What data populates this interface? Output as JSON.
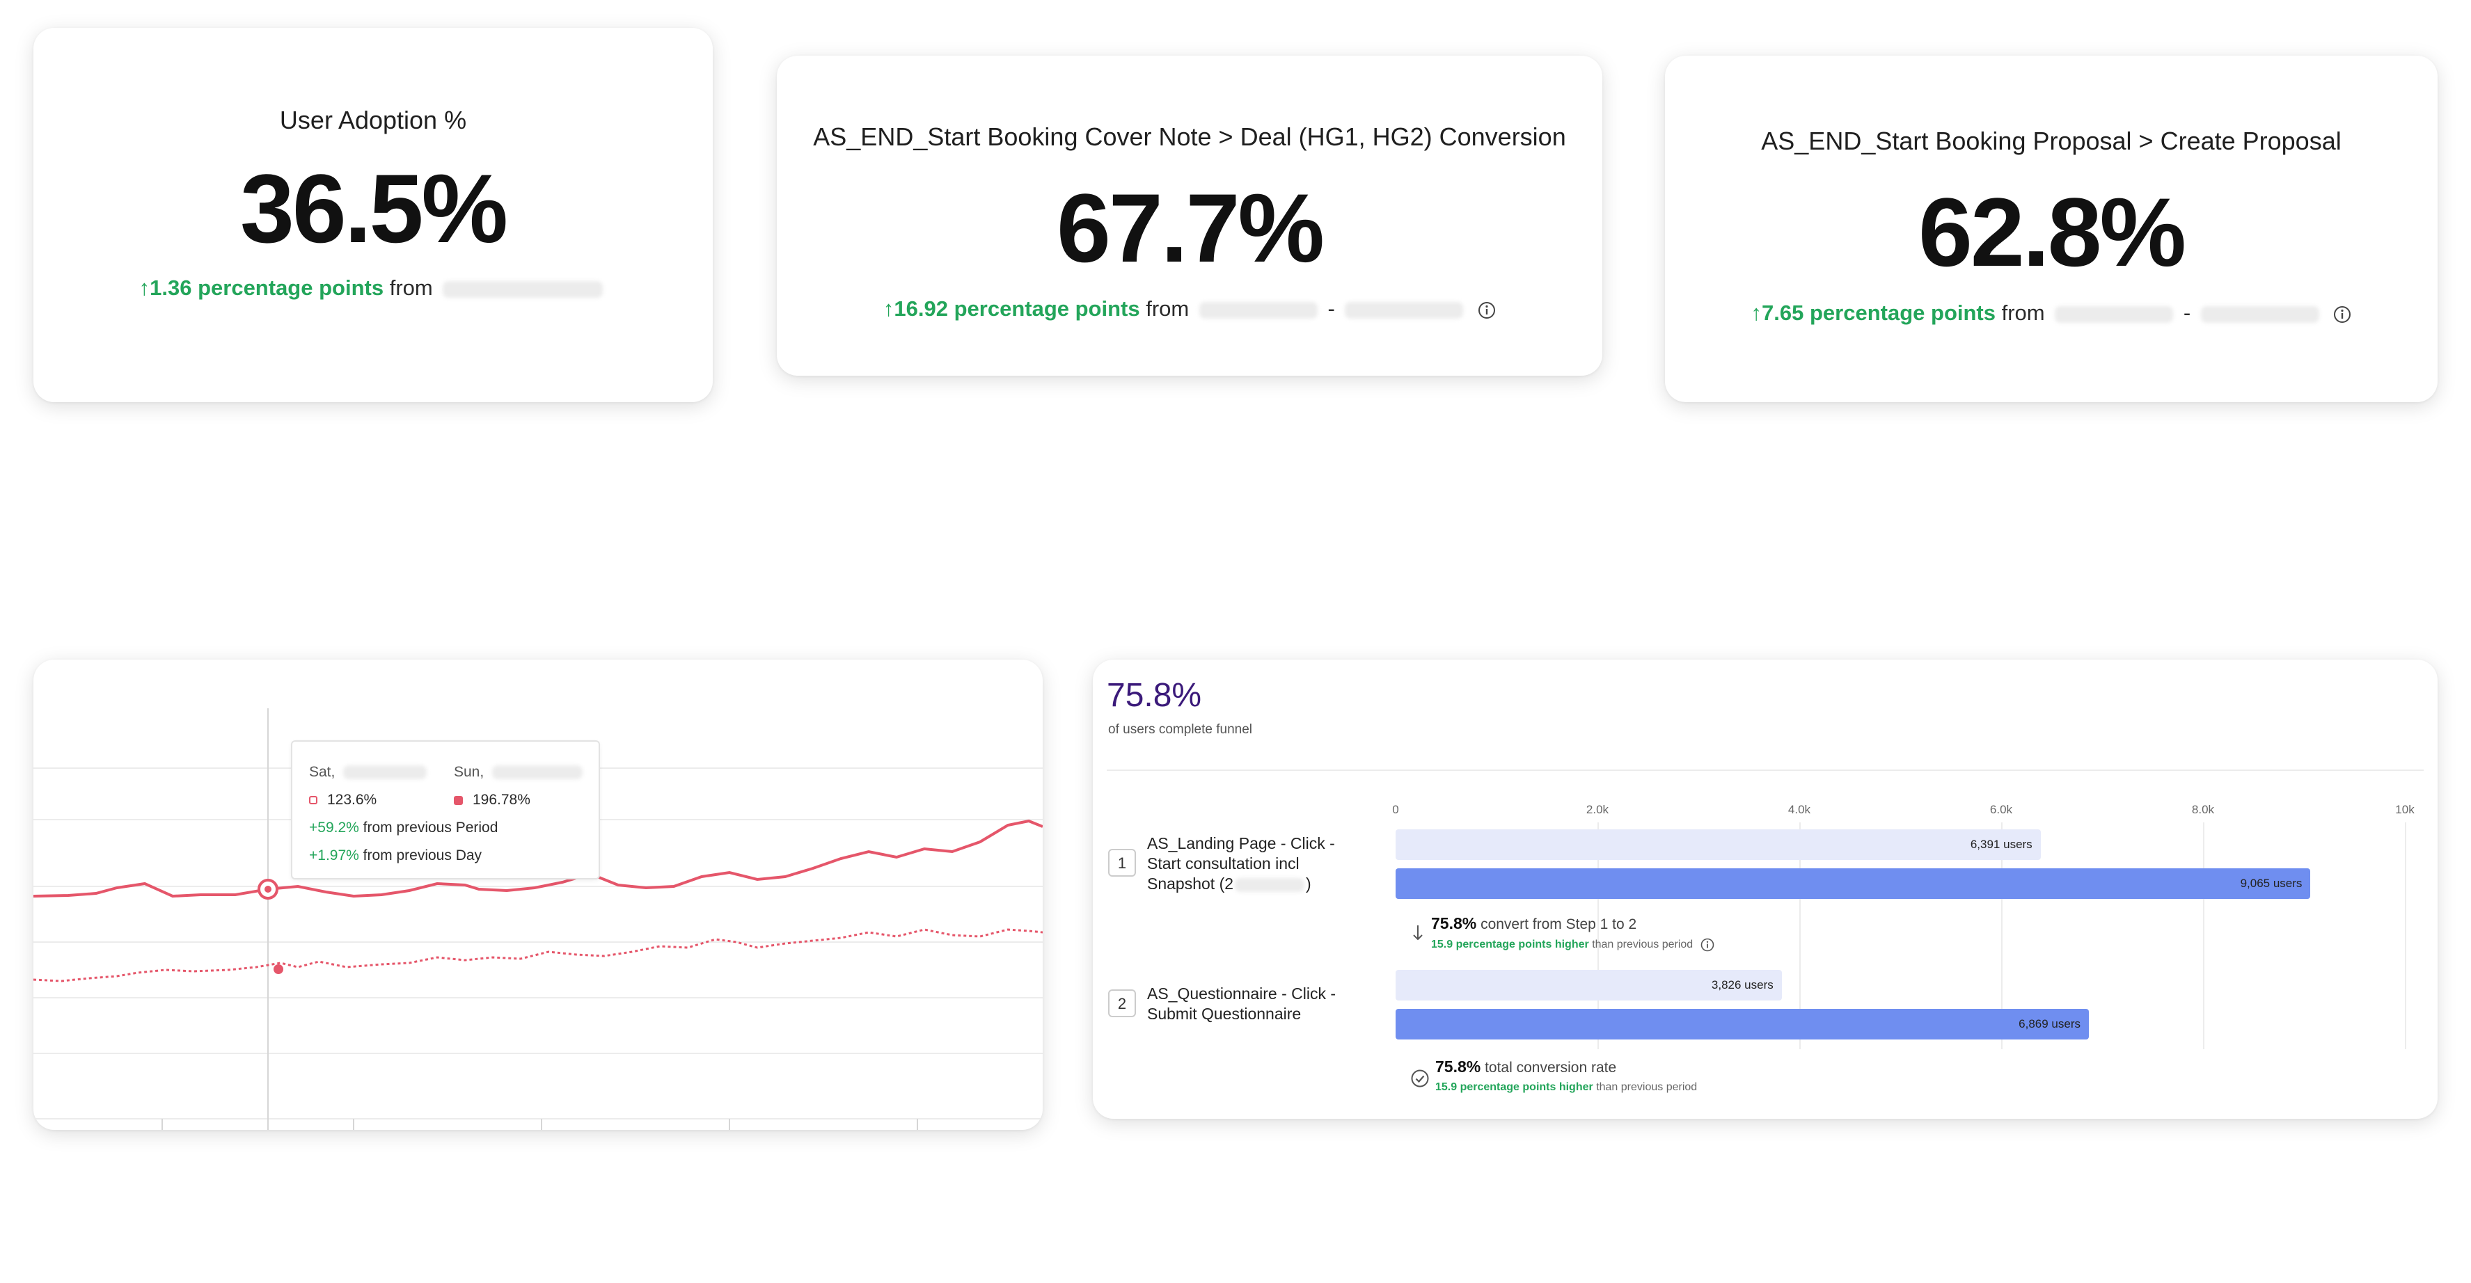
{
  "kpis": [
    {
      "title": "User Adoption %",
      "value": "36.5%",
      "delta": "↑1.36 percentage points",
      "from": "from"
    },
    {
      "title": "AS_END_Start Booking Cover Note > Deal (HG1, HG2) Conversion",
      "value": "67.7%",
      "delta": "↑16.92 percentage points",
      "from": "from",
      "sep": "-"
    },
    {
      "title": "AS_END_Start Booking Proposal > Create Proposal",
      "value": "62.8%",
      "delta": "↑7.65 percentage points",
      "from": "from",
      "sep": "-"
    }
  ],
  "linechart": {
    "tooltip": {
      "col1_label": "Sat,",
      "col2_label": "Sun,",
      "val1": "123.6%",
      "val2": "196.78%",
      "line3_value": "+59.2%",
      "line3_text": "from previous Period",
      "line4_value": "+1.97%",
      "line4_text": "from previous Day"
    },
    "colors": {
      "current": "#e5566a",
      "previous": "#e5566a"
    }
  },
  "funnel": {
    "headline": "75.8%",
    "subtitle": "of users complete funnel",
    "axis": [
      "0",
      "2.0k",
      "4.0k",
      "6.0k",
      "8.0k",
      "10k"
    ],
    "axis_max": 10000,
    "steps": [
      {
        "num": "1",
        "label_lines": [
          "AS_Landing Page - Click -",
          "Start consultation incl",
          "Snapshot (2"
        ],
        "label_tail": ")",
        "prev_users": 6391,
        "curr_users": 9065,
        "prev_label": "6,391 users",
        "curr_label": "9,065 users"
      },
      {
        "num": "2",
        "label_lines": [
          "AS_Questionnaire - Click -",
          "Submit Questionnaire"
        ],
        "prev_users": 3826,
        "curr_users": 6869,
        "prev_label": "3,826 users",
        "curr_label": "6,869 users"
      }
    ],
    "step_conversion": {
      "value": "75.8%",
      "text": "convert from Step 1 to 2",
      "delta": "15.9 percentage points higher",
      "delta_tail": "than previous period"
    },
    "total_conversion": {
      "value": "75.8%",
      "text": "total conversion rate",
      "delta": "15.9 percentage points higher",
      "delta_tail": "than previous period"
    },
    "colors": {
      "previous": "#e6eafa",
      "current": "#6f8ef0",
      "headline": "#3b1a7a"
    }
  }
}
